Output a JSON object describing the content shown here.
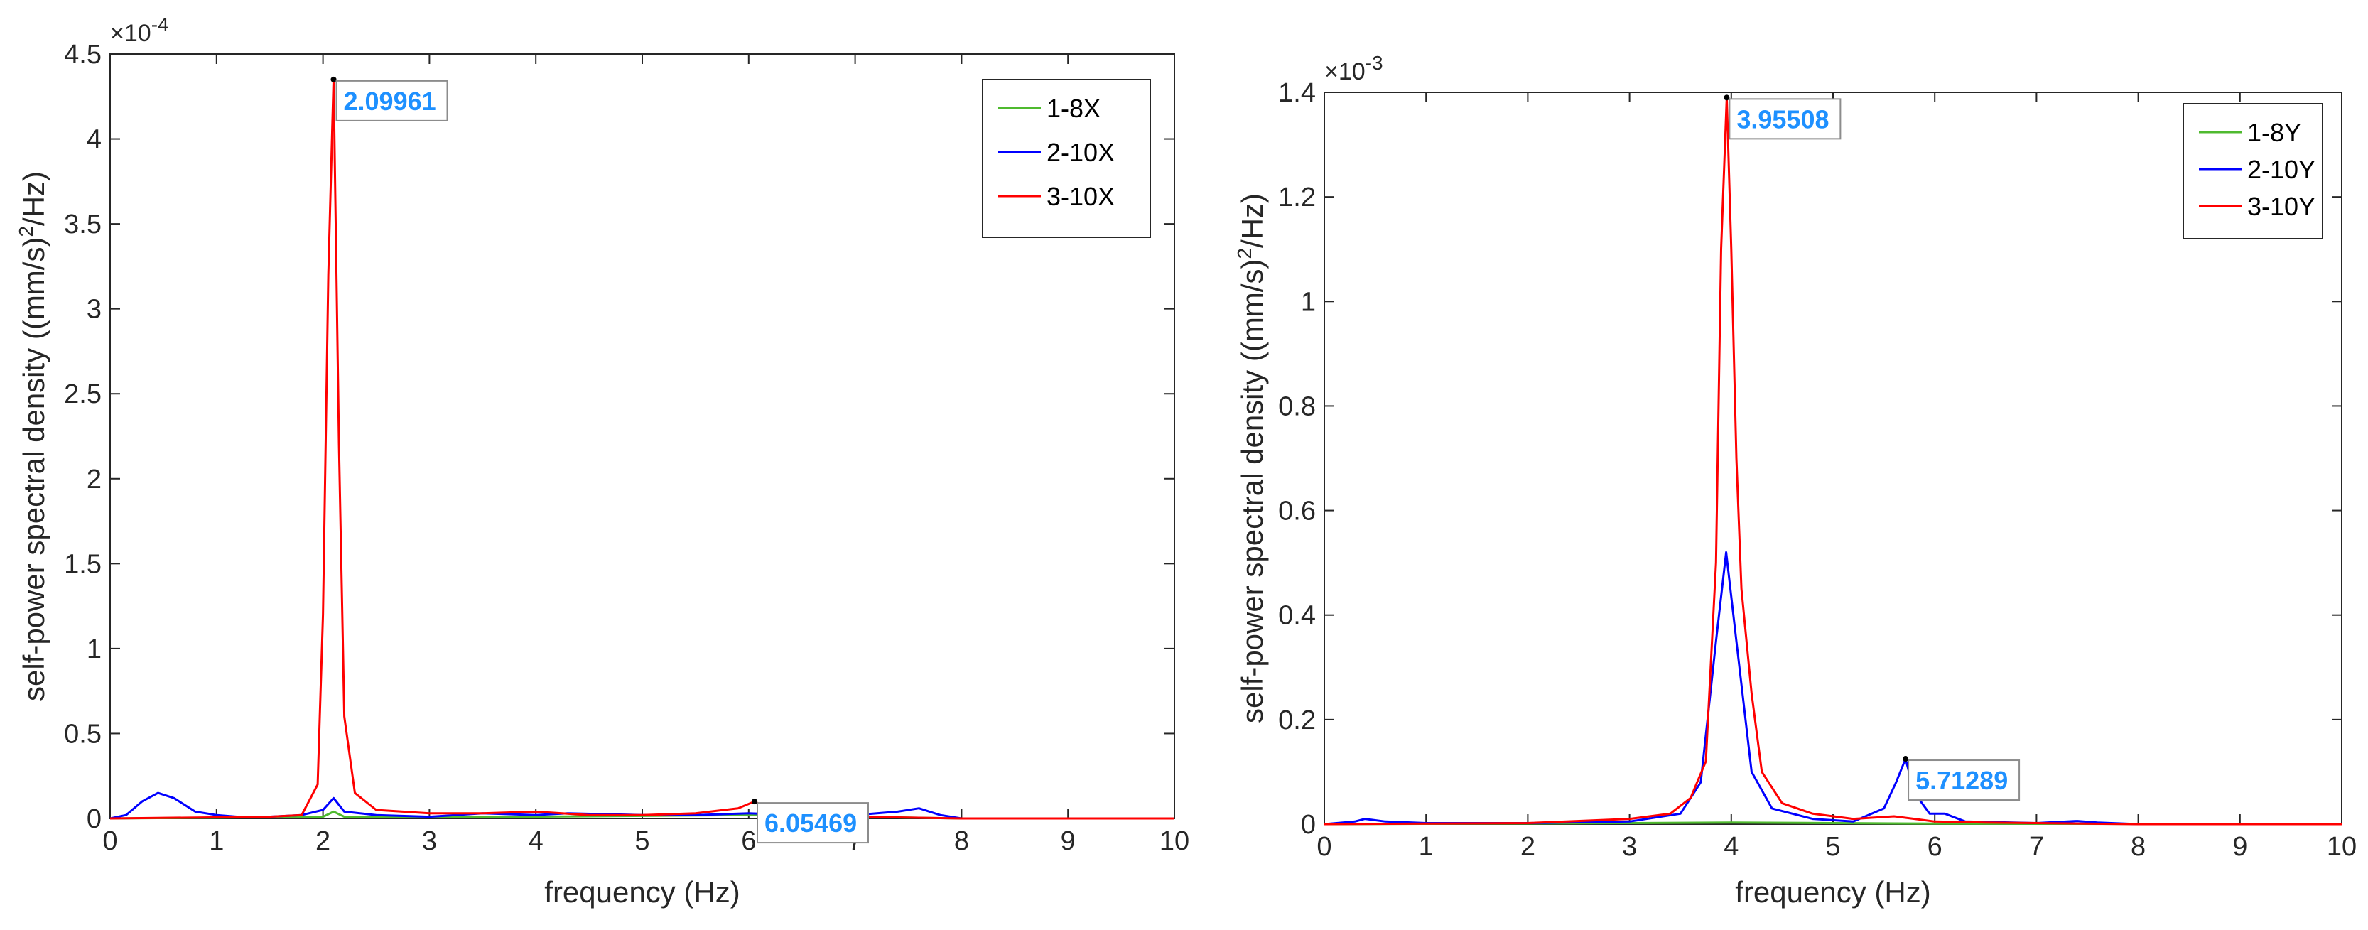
{
  "colors": {
    "green": "#4fba2f",
    "blue": "#0000ff",
    "red": "#ff0000",
    "datatip": "#1e90ff"
  },
  "chart_data": [
    {
      "type": "line",
      "xlabel": "frequency (Hz)",
      "ylabel_main": "self-power spectral density ((mm/s)",
      "ylabel_sup": "2",
      "ylabel_tail": "/Hz)",
      "exponent_base": "×10",
      "exponent_power": "-4",
      "xlim": [
        0,
        10
      ],
      "ylim": [
        0,
        4.5
      ],
      "xticks": [
        0,
        1,
        2,
        3,
        4,
        5,
        6,
        7,
        8,
        9,
        10
      ],
      "yticks": [
        0,
        0.5,
        1,
        1.5,
        2,
        2.5,
        3,
        3.5,
        4,
        4.5
      ],
      "xtick_labels": [
        "0",
        "1",
        "2",
        "3",
        "4",
        "5",
        "6",
        "7",
        "8",
        "9",
        "10"
      ],
      "ytick_labels": [
        "0",
        "0.5",
        "1",
        "1.5",
        "2",
        "2.5",
        "3",
        "3.5",
        "4",
        "4.5"
      ],
      "legend_position": "top-right",
      "series": [
        {
          "name": "1-8X",
          "color": "#4fba2f",
          "x": [
            0,
            2.0,
            2.1,
            2.2,
            4.0,
            6.0,
            8.0,
            10
          ],
          "y": [
            0,
            0.01,
            0.04,
            0.01,
            0.01,
            0.02,
            0.0,
            0
          ]
        },
        {
          "name": "2-10X",
          "color": "#0000ff",
          "x": [
            0,
            0.15,
            0.3,
            0.45,
            0.6,
            0.8,
            1.0,
            1.2,
            1.5,
            1.8,
            2.0,
            2.1,
            2.2,
            2.5,
            3.0,
            3.5,
            4.0,
            4.3,
            5.0,
            5.5,
            6.0,
            6.5,
            7.0,
            7.4,
            7.6,
            7.8,
            8.0,
            10
          ],
          "y": [
            0,
            0.02,
            0.1,
            0.15,
            0.12,
            0.04,
            0.02,
            0.01,
            0.01,
            0.02,
            0.05,
            0.12,
            0.04,
            0.02,
            0.01,
            0.03,
            0.02,
            0.03,
            0.02,
            0.02,
            0.03,
            0.02,
            0.02,
            0.04,
            0.06,
            0.02,
            0.0,
            0
          ]
        },
        {
          "name": "3-10X",
          "color": "#ff0000",
          "x": [
            0,
            1.5,
            1.8,
            1.95,
            2.0,
            2.05,
            2.09961,
            2.15,
            2.2,
            2.3,
            2.5,
            3.0,
            3.5,
            4.0,
            4.5,
            5.0,
            5.5,
            5.9,
            6.05469,
            6.2,
            6.5,
            7.0,
            8.0,
            10
          ],
          "y": [
            0,
            0.01,
            0.02,
            0.2,
            1.2,
            3.2,
            4.35,
            2.2,
            0.6,
            0.15,
            0.05,
            0.03,
            0.03,
            0.04,
            0.02,
            0.02,
            0.03,
            0.06,
            0.1,
            0.05,
            0.02,
            0.01,
            0.0,
            0
          ]
        }
      ],
      "datatips": [
        {
          "x": 2.09961,
          "y": 4.35,
          "label": "2.09961"
        },
        {
          "x": 6.05469,
          "y": 0.1,
          "label": "6.05469"
        }
      ]
    },
    {
      "type": "line",
      "xlabel": "frequency (Hz)",
      "ylabel_main": "self-power spectral density ((mm/s)",
      "ylabel_sup": "2",
      "ylabel_tail": "/Hz)",
      "exponent_base": "×10",
      "exponent_power": "-3",
      "xlim": [
        0,
        10
      ],
      "ylim": [
        0,
        1.4
      ],
      "xticks": [
        0,
        1,
        2,
        3,
        4,
        5,
        6,
        7,
        8,
        9,
        10
      ],
      "yticks": [
        0,
        0.2,
        0.4,
        0.6,
        0.8,
        1,
        1.2,
        1.4
      ],
      "xtick_labels": [
        "0",
        "1",
        "2",
        "3",
        "4",
        "5",
        "6",
        "7",
        "8",
        "9",
        "10"
      ],
      "ytick_labels": [
        "0",
        "0.2",
        "0.4",
        "0.6",
        "0.8",
        "1",
        "1.2",
        "1.4"
      ],
      "legend_position": "top-right",
      "series": [
        {
          "name": "1-8Y",
          "color": "#4fba2f",
          "x": [
            0,
            3.0,
            4.0,
            5.0,
            6.0,
            10
          ],
          "y": [
            0,
            0.002,
            0.003,
            0.002,
            0.001,
            0
          ]
        },
        {
          "name": "2-10Y",
          "color": "#0000ff",
          "x": [
            0,
            0.3,
            0.4,
            0.6,
            1.0,
            2.0,
            3.0,
            3.5,
            3.7,
            3.85,
            3.95,
            4.05,
            4.2,
            4.4,
            4.8,
            5.2,
            5.5,
            5.62,
            5.71289,
            5.8,
            5.95,
            6.1,
            6.3,
            7.0,
            7.4,
            7.6,
            8.0,
            10
          ],
          "y": [
            0,
            0.005,
            0.01,
            0.005,
            0.002,
            0.002,
            0.005,
            0.02,
            0.08,
            0.35,
            0.52,
            0.35,
            0.1,
            0.03,
            0.01,
            0.005,
            0.03,
            0.08,
            0.125,
            0.06,
            0.02,
            0.02,
            0.005,
            0.002,
            0.006,
            0.003,
            0.0,
            0
          ]
        },
        {
          "name": "3-10Y",
          "color": "#ff0000",
          "x": [
            0,
            2.0,
            3.0,
            3.4,
            3.6,
            3.75,
            3.85,
            3.9,
            3.95508,
            4.0,
            4.05,
            4.1,
            4.2,
            4.3,
            4.5,
            4.8,
            5.2,
            5.6,
            5.8,
            6.0,
            6.5,
            7.0,
            8.0,
            10
          ],
          "y": [
            0,
            0.002,
            0.01,
            0.02,
            0.05,
            0.12,
            0.5,
            1.1,
            1.39,
            1.1,
            0.7,
            0.45,
            0.25,
            0.1,
            0.04,
            0.02,
            0.01,
            0.015,
            0.01,
            0.005,
            0.003,
            0.002,
            0.0,
            0
          ]
        }
      ],
      "datatips": [
        {
          "x": 3.95508,
          "y": 1.39,
          "label": "3.95508"
        },
        {
          "x": 5.71289,
          "y": 0.125,
          "label": "5.71289"
        }
      ]
    }
  ]
}
